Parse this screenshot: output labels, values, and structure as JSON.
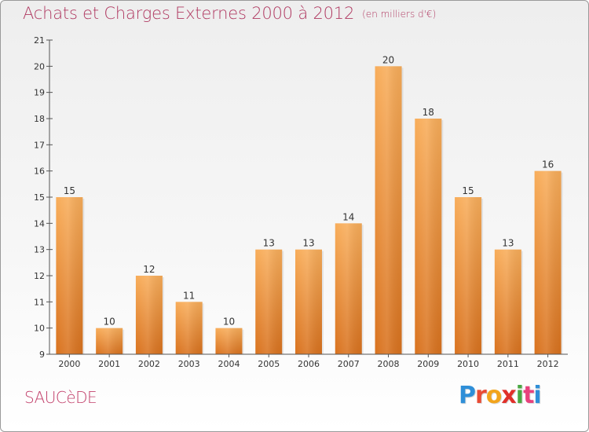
{
  "header": {
    "title": "Achats et Charges Externes 2000 à 2012",
    "unit": "(en milliers d'€)"
  },
  "footer": {
    "commune": "SAUCèDE",
    "logo": "Proxiti"
  },
  "colors": {
    "title": "#b03a62",
    "bar_light": "#f7aa55",
    "bar_dark": "#db7420",
    "axis": "#333333"
  },
  "chart_data": {
    "type": "bar",
    "title": "Achats et Charges Externes 2000 à 2012",
    "subtitle": "(en milliers d'€)",
    "xlabel": "",
    "ylabel": "",
    "categories": [
      "2000",
      "2001",
      "2002",
      "2003",
      "2004",
      "2005",
      "2006",
      "2007",
      "2008",
      "2009",
      "2010",
      "2011",
      "2012"
    ],
    "values": [
      15,
      10,
      12,
      11,
      10,
      13,
      13,
      14,
      20,
      18,
      15,
      13,
      16
    ],
    "ylim": [
      9,
      21
    ],
    "yticks": [
      9,
      10,
      11,
      12,
      13,
      14,
      15,
      16,
      17,
      18,
      19,
      20,
      21
    ],
    "grid": false,
    "legend": "none",
    "data_labels": true
  }
}
